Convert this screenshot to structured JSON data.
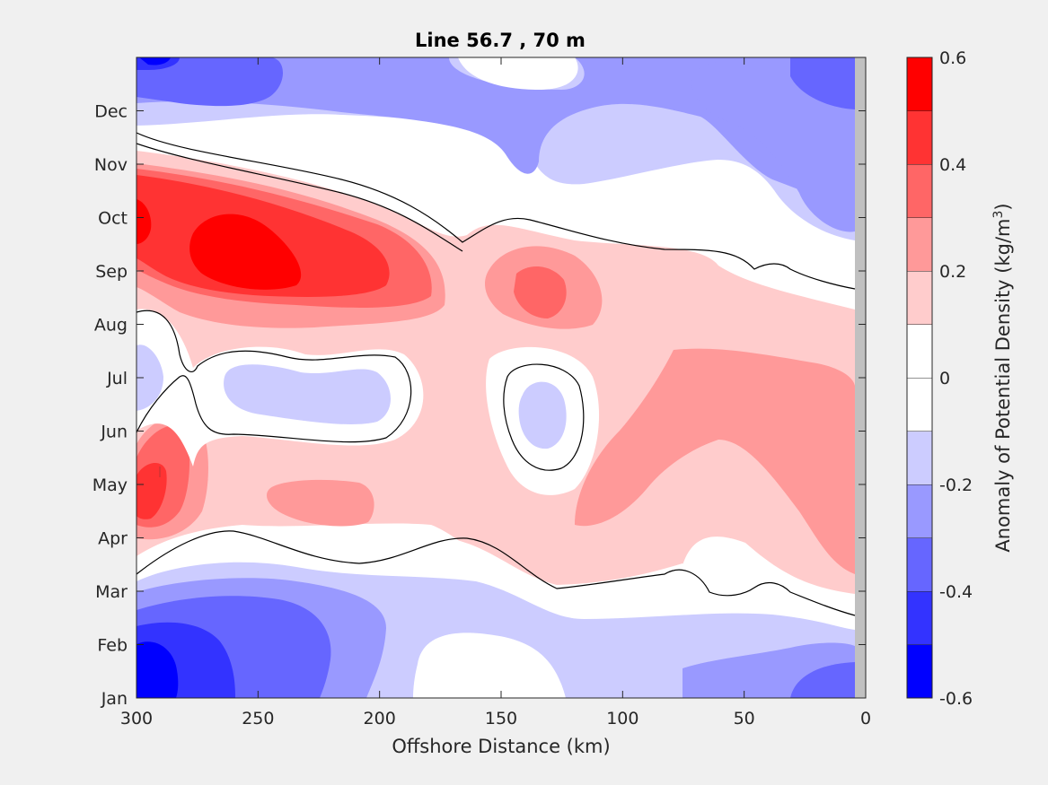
{
  "chart_data": {
    "type": "filled-contour",
    "title": "Line 56.7 , 70 m",
    "xlabel": "Offshore Distance (km)",
    "x_ticks": [
      300,
      250,
      200,
      150,
      100,
      50,
      0
    ],
    "xlim": [
      300,
      0
    ],
    "y_ticks": [
      "Jan",
      "Feb",
      "Mar",
      "Apr",
      "May",
      "Jun",
      "Jul",
      "Aug",
      "Sep",
      "Oct",
      "Nov",
      "Dec"
    ],
    "colorbar": {
      "label_prefix": "Anomaly of Potential Density (kg/m",
      "label_sup": "3",
      "label_suffix": ")",
      "ticks": [
        "-0.6",
        "-0.4",
        "-0.2",
        "0",
        "0.2",
        "0.4",
        "0.6"
      ],
      "range": [
        -0.6,
        0.6
      ],
      "levels": [
        {
          "range": [
            -0.6,
            -0.5
          ],
          "color": "#0000ff"
        },
        {
          "range": [
            -0.5,
            -0.4
          ],
          "color": "#3333ff"
        },
        {
          "range": [
            -0.4,
            -0.3
          ],
          "color": "#6666ff"
        },
        {
          "range": [
            -0.3,
            -0.2
          ],
          "color": "#9999ff"
        },
        {
          "range": [
            -0.2,
            -0.1
          ],
          "color": "#ccccff"
        },
        {
          "range": [
            -0.1,
            0.0
          ],
          "color": "#ffffff"
        },
        {
          "range": [
            0.0,
            0.1
          ],
          "color": "#ffffff"
        },
        {
          "range": [
            0.1,
            0.2
          ],
          "color": "#ffcccc"
        },
        {
          "range": [
            0.2,
            0.3
          ],
          "color": "#ff9999"
        },
        {
          "range": [
            0.3,
            0.4
          ],
          "color": "#ff6666"
        },
        {
          "range": [
            0.4,
            0.5
          ],
          "color": "#ff3333"
        },
        {
          "range": [
            0.5,
            0.6
          ],
          "color": "#ff0000"
        }
      ]
    },
    "zero_contour": "black solid line"
  }
}
